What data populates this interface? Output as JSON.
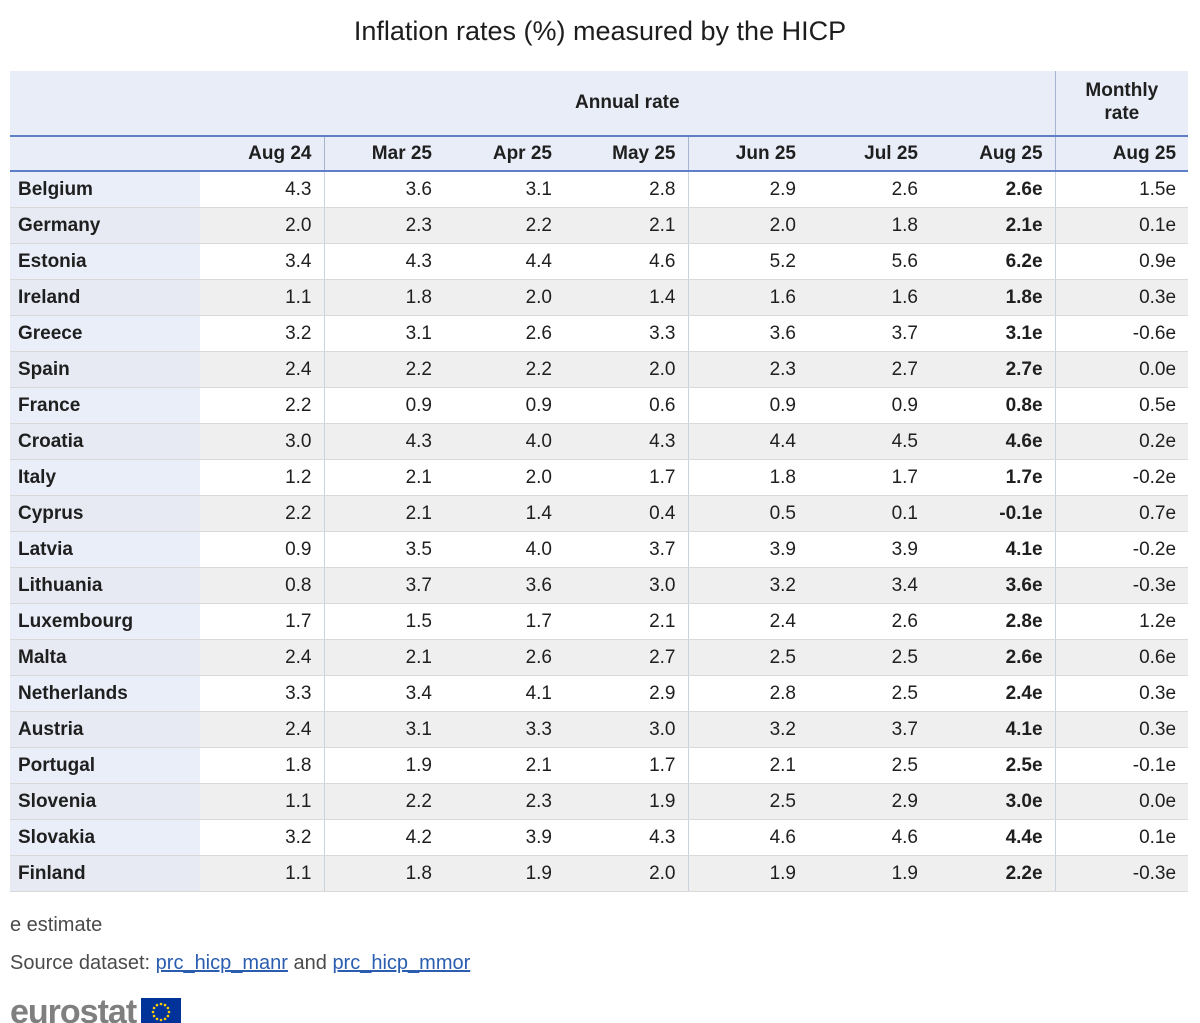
{
  "title": "Inflation rates (%) measured by the HICP",
  "colors": {
    "accent_blue_line": "#5d7ec9",
    "header_bg": "#e9edf8",
    "row_alt_bg": "#efefef",
    "country_col_bg": "#eaeef9",
    "country_col_alt_bg": "#e7eaf2",
    "group_separator": "#a8b4d0",
    "row_border": "#d9d9d9",
    "link_blue": "#2a5db0",
    "logo_gray": "#7f7f7f",
    "flag_blue": "#003399",
    "star_yellow": "#ffcc00"
  },
  "table": {
    "group_headers": {
      "annual": "Annual rate",
      "monthly": "Monthly rate"
    },
    "columns": [
      "Aug 24",
      "Mar 25",
      "Apr 25",
      "May 25",
      "Jun 25",
      "Jul 25",
      "Aug 25",
      "Aug 25"
    ],
    "bold_value_col_index": 6,
    "group_separator_col_indexes": [
      1,
      4,
      7
    ],
    "rows": [
      {
        "country": "Belgium",
        "values": [
          "4.3",
          "3.6",
          "3.1",
          "2.8",
          "2.9",
          "2.6",
          "2.6e",
          "1.5e"
        ]
      },
      {
        "country": "Germany",
        "values": [
          "2.0",
          "2.3",
          "2.2",
          "2.1",
          "2.0",
          "1.8",
          "2.1e",
          "0.1e"
        ]
      },
      {
        "country": "Estonia",
        "values": [
          "3.4",
          "4.3",
          "4.4",
          "4.6",
          "5.2",
          "5.6",
          "6.2e",
          "0.9e"
        ]
      },
      {
        "country": "Ireland",
        "values": [
          "1.1",
          "1.8",
          "2.0",
          "1.4",
          "1.6",
          "1.6",
          "1.8e",
          "0.3e"
        ]
      },
      {
        "country": "Greece",
        "values": [
          "3.2",
          "3.1",
          "2.6",
          "3.3",
          "3.6",
          "3.7",
          "3.1e",
          "-0.6e"
        ]
      },
      {
        "country": "Spain",
        "values": [
          "2.4",
          "2.2",
          "2.2",
          "2.0",
          "2.3",
          "2.7",
          "2.7e",
          "0.0e"
        ]
      },
      {
        "country": "France",
        "values": [
          "2.2",
          "0.9",
          "0.9",
          "0.6",
          "0.9",
          "0.9",
          "0.8e",
          "0.5e"
        ]
      },
      {
        "country": "Croatia",
        "values": [
          "3.0",
          "4.3",
          "4.0",
          "4.3",
          "4.4",
          "4.5",
          "4.6e",
          "0.2e"
        ]
      },
      {
        "country": "Italy",
        "values": [
          "1.2",
          "2.1",
          "2.0",
          "1.7",
          "1.8",
          "1.7",
          "1.7e",
          "-0.2e"
        ]
      },
      {
        "country": "Cyprus",
        "values": [
          "2.2",
          "2.1",
          "1.4",
          "0.4",
          "0.5",
          "0.1",
          "-0.1e",
          "0.7e"
        ]
      },
      {
        "country": "Latvia",
        "values": [
          "0.9",
          "3.5",
          "4.0",
          "3.7",
          "3.9",
          "3.9",
          "4.1e",
          "-0.2e"
        ]
      },
      {
        "country": "Lithuania",
        "values": [
          "0.8",
          "3.7",
          "3.6",
          "3.0",
          "3.2",
          "3.4",
          "3.6e",
          "-0.3e"
        ]
      },
      {
        "country": "Luxembourg",
        "values": [
          "1.7",
          "1.5",
          "1.7",
          "2.1",
          "2.4",
          "2.6",
          "2.8e",
          "1.2e"
        ]
      },
      {
        "country": "Malta",
        "values": [
          "2.4",
          "2.1",
          "2.6",
          "2.7",
          "2.5",
          "2.5",
          "2.6e",
          "0.6e"
        ]
      },
      {
        "country": "Netherlands",
        "values": [
          "3.3",
          "3.4",
          "4.1",
          "2.9",
          "2.8",
          "2.5",
          "2.4e",
          "0.3e"
        ]
      },
      {
        "country": "Austria",
        "values": [
          "2.4",
          "3.1",
          "3.3",
          "3.0",
          "3.2",
          "3.7",
          "4.1e",
          "0.3e"
        ]
      },
      {
        "country": "Portugal",
        "values": [
          "1.8",
          "1.9",
          "2.1",
          "1.7",
          "2.1",
          "2.5",
          "2.5e",
          "-0.1e"
        ]
      },
      {
        "country": "Slovenia",
        "values": [
          "1.1",
          "2.2",
          "2.3",
          "1.9",
          "2.5",
          "2.9",
          "3.0e",
          "0.0e"
        ]
      },
      {
        "country": "Slovakia",
        "values": [
          "3.2",
          "4.2",
          "3.9",
          "4.3",
          "4.6",
          "4.6",
          "4.4e",
          "0.1e"
        ]
      },
      {
        "country": "Finland",
        "values": [
          "1.1",
          "1.8",
          "1.9",
          "2.0",
          "1.9",
          "1.9",
          "2.2e",
          "-0.3e"
        ]
      }
    ]
  },
  "footer": {
    "note": "e estimate",
    "source_prefix": "Source dataset: ",
    "link1": "prc_hicp_manr",
    "conjunction": " and ",
    "link2": "prc_hicp_mmor",
    "logo_text": "eurostat"
  },
  "chart_data": {
    "type": "table",
    "title": "Inflation rates (%) measured by the HICP",
    "column_groups": [
      "Annual rate",
      "Annual rate",
      "Annual rate",
      "Annual rate",
      "Annual rate",
      "Annual rate",
      "Annual rate",
      "Monthly rate"
    ],
    "categories": [
      "Aug 24",
      "Mar 25",
      "Apr 25",
      "May 25",
      "Jun 25",
      "Jul 25",
      "Aug 25",
      "Aug 25"
    ],
    "estimate_flag_note": "values suffixed with e are estimates",
    "series": [
      {
        "name": "Belgium",
        "values": [
          4.3,
          3.6,
          3.1,
          2.8,
          2.9,
          2.6,
          2.6,
          1.5
        ]
      },
      {
        "name": "Germany",
        "values": [
          2.0,
          2.3,
          2.2,
          2.1,
          2.0,
          1.8,
          2.1,
          0.1
        ]
      },
      {
        "name": "Estonia",
        "values": [
          3.4,
          4.3,
          4.4,
          4.6,
          5.2,
          5.6,
          6.2,
          0.9
        ]
      },
      {
        "name": "Ireland",
        "values": [
          1.1,
          1.8,
          2.0,
          1.4,
          1.6,
          1.6,
          1.8,
          0.3
        ]
      },
      {
        "name": "Greece",
        "values": [
          3.2,
          3.1,
          2.6,
          3.3,
          3.6,
          3.7,
          3.1,
          -0.6
        ]
      },
      {
        "name": "Spain",
        "values": [
          2.4,
          2.2,
          2.2,
          2.0,
          2.3,
          2.7,
          2.7,
          0.0
        ]
      },
      {
        "name": "France",
        "values": [
          2.2,
          0.9,
          0.9,
          0.6,
          0.9,
          0.9,
          0.8,
          0.5
        ]
      },
      {
        "name": "Croatia",
        "values": [
          3.0,
          4.3,
          4.0,
          4.3,
          4.4,
          4.5,
          4.6,
          0.2
        ]
      },
      {
        "name": "Italy",
        "values": [
          1.2,
          2.1,
          2.0,
          1.7,
          1.8,
          1.7,
          1.7,
          -0.2
        ]
      },
      {
        "name": "Cyprus",
        "values": [
          2.2,
          2.1,
          1.4,
          0.4,
          0.5,
          0.1,
          -0.1,
          0.7
        ]
      },
      {
        "name": "Latvia",
        "values": [
          0.9,
          3.5,
          4.0,
          3.7,
          3.9,
          3.9,
          4.1,
          -0.2
        ]
      },
      {
        "name": "Lithuania",
        "values": [
          0.8,
          3.7,
          3.6,
          3.0,
          3.2,
          3.4,
          3.6,
          -0.3
        ]
      },
      {
        "name": "Luxembourg",
        "values": [
          1.7,
          1.5,
          1.7,
          2.1,
          2.4,
          2.6,
          2.8,
          1.2
        ]
      },
      {
        "name": "Malta",
        "values": [
          2.4,
          2.1,
          2.6,
          2.7,
          2.5,
          2.5,
          2.6,
          0.6
        ]
      },
      {
        "name": "Netherlands",
        "values": [
          3.3,
          3.4,
          4.1,
          2.9,
          2.8,
          2.5,
          2.4,
          0.3
        ]
      },
      {
        "name": "Austria",
        "values": [
          2.4,
          3.1,
          3.3,
          3.0,
          3.2,
          3.7,
          4.1,
          0.3
        ]
      },
      {
        "name": "Portugal",
        "values": [
          1.8,
          1.9,
          2.1,
          1.7,
          2.1,
          2.5,
          2.5,
          -0.1
        ]
      },
      {
        "name": "Slovenia",
        "values": [
          1.1,
          2.2,
          2.3,
          1.9,
          2.5,
          2.9,
          3.0,
          0.0
        ]
      },
      {
        "name": "Slovakia",
        "values": [
          3.2,
          4.2,
          3.9,
          4.3,
          4.6,
          4.6,
          4.4,
          0.1
        ]
      },
      {
        "name": "Finland",
        "values": [
          1.1,
          1.8,
          1.9,
          2.0,
          1.9,
          1.9,
          2.2,
          -0.3
        ]
      }
    ]
  }
}
